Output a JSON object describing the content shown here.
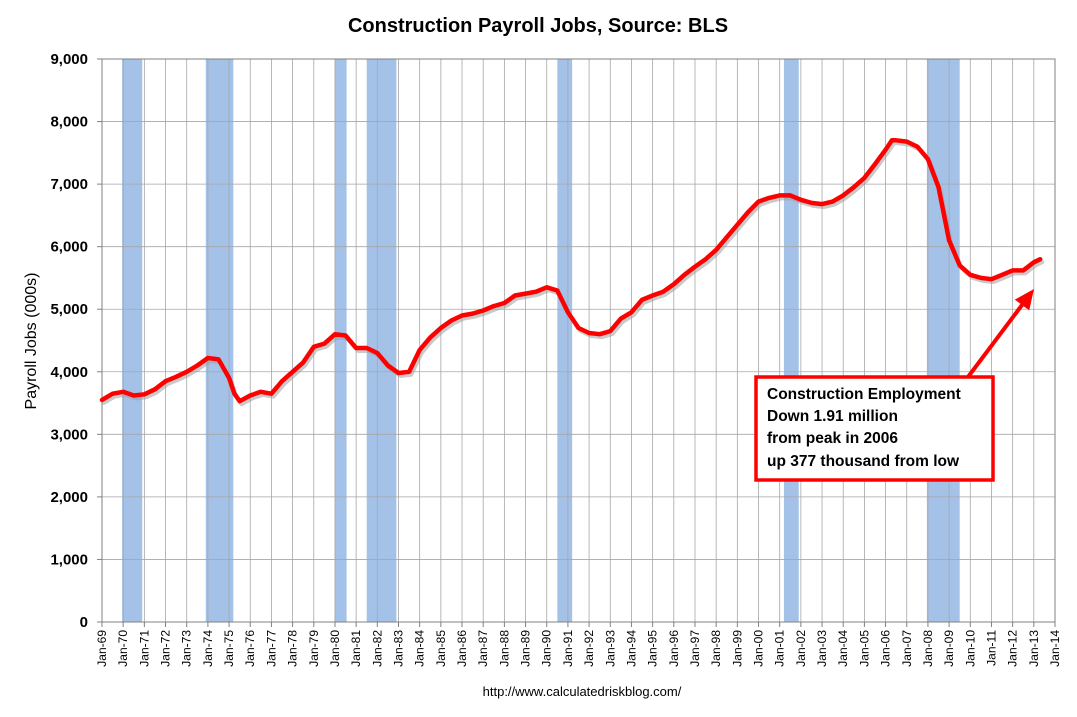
{
  "chart_data": {
    "type": "line",
    "title": "Construction Payroll Jobs, Source: BLS",
    "xlabel": "",
    "ylabel": "Payroll Jobs (000s)",
    "source": "http://www.calculatedriskblog.com/",
    "xlim": [
      1969.0,
      2014.0
    ],
    "ylim": [
      0,
      9000
    ],
    "yticks": [
      0,
      1000,
      2000,
      3000,
      4000,
      5000,
      6000,
      7000,
      8000,
      9000
    ],
    "ytick_labels": [
      "0",
      "1,000",
      "2,000",
      "3,000",
      "4,000",
      "5,000",
      "6,000",
      "7,000",
      "8,000",
      "9,000"
    ],
    "xtick_labels": [
      "Jan-69",
      "Jan-70",
      "Jan-71",
      "Jan-72",
      "Jan-73",
      "Jan-74",
      "Jan-75",
      "Jan-76",
      "Jan-77",
      "Jan-78",
      "Jan-79",
      "Jan-80",
      "Jan-81",
      "Jan-82",
      "Jan-83",
      "Jan-84",
      "Jan-85",
      "Jan-86",
      "Jan-87",
      "Jan-88",
      "Jan-89",
      "Jan-90",
      "Jan-91",
      "Jan-92",
      "Jan-93",
      "Jan-94",
      "Jan-95",
      "Jan-96",
      "Jan-97",
      "Jan-98",
      "Jan-99",
      "Jan-00",
      "Jan-01",
      "Jan-02",
      "Jan-03",
      "Jan-04",
      "Jan-05",
      "Jan-06",
      "Jan-07",
      "Jan-08",
      "Jan-09",
      "Jan-10",
      "Jan-11",
      "Jan-12",
      "Jan-13",
      "Jan-14"
    ],
    "grid": true,
    "recessions": [
      {
        "start": 1969.95,
        "end": 1970.9
      },
      {
        "start": 1973.9,
        "end": 1975.2
      },
      {
        "start": 1980.0,
        "end": 1980.55
      },
      {
        "start": 1981.5,
        "end": 1982.9
      },
      {
        "start": 1990.5,
        "end": 1991.2
      },
      {
        "start": 2001.2,
        "end": 2001.9
      },
      {
        "start": 2007.95,
        "end": 2009.5
      }
    ],
    "series": [
      {
        "name": "Construction Payroll Jobs",
        "color": "#ff0000",
        "x": [
          1969.0,
          1969.5,
          1970.0,
          1970.5,
          1971.0,
          1971.5,
          1972.0,
          1972.5,
          1973.0,
          1973.5,
          1974.0,
          1974.5,
          1975.0,
          1975.25,
          1975.5,
          1976.0,
          1976.5,
          1977.0,
          1977.5,
          1978.0,
          1978.5,
          1979.0,
          1979.5,
          1980.0,
          1980.5,
          1981.0,
          1981.5,
          1982.0,
          1982.5,
          1983.0,
          1983.5,
          1984.0,
          1984.5,
          1985.0,
          1985.5,
          1986.0,
          1986.5,
          1987.0,
          1987.5,
          1988.0,
          1988.5,
          1989.0,
          1989.5,
          1990.0,
          1990.5,
          1991.0,
          1991.5,
          1992.0,
          1992.5,
          1993.0,
          1993.5,
          1994.0,
          1994.5,
          1995.0,
          1995.5,
          1996.0,
          1996.5,
          1997.0,
          1997.5,
          1998.0,
          1998.5,
          1999.0,
          1999.5,
          2000.0,
          2000.5,
          2001.0,
          2001.5,
          2002.0,
          2002.5,
          2003.0,
          2003.5,
          2004.0,
          2004.5,
          2005.0,
          2005.5,
          2006.0,
          2006.3,
          2006.5,
          2007.0,
          2007.5,
          2008.0,
          2008.5,
          2009.0,
          2009.5,
          2010.0,
          2010.5,
          2011.0,
          2011.5,
          2012.0,
          2012.5,
          2013.0,
          2013.3
        ],
        "values": [
          3550,
          3650,
          3680,
          3620,
          3640,
          3720,
          3850,
          3920,
          4000,
          4100,
          4220,
          4200,
          3900,
          3650,
          3530,
          3620,
          3680,
          3650,
          3850,
          4000,
          4150,
          4400,
          4450,
          4600,
          4580,
          4380,
          4380,
          4300,
          4100,
          3980,
          4000,
          4350,
          4550,
          4700,
          4820,
          4900,
          4930,
          4980,
          5050,
          5100,
          5220,
          5250,
          5280,
          5350,
          5300,
          4950,
          4700,
          4620,
          4600,
          4650,
          4850,
          4950,
          5150,
          5220,
          5280,
          5400,
          5550,
          5680,
          5800,
          5950,
          6150,
          6350,
          6550,
          6720,
          6780,
          6820,
          6820,
          6750,
          6700,
          6680,
          6720,
          6820,
          6950,
          7100,
          7320,
          7550,
          7700,
          7700,
          7680,
          7600,
          7400,
          6950,
          6100,
          5700,
          5550,
          5500,
          5480,
          5550,
          5620,
          5620,
          5750,
          5800
        ]
      }
    ],
    "annotation": {
      "lines": [
        "Construction  Employment",
        "Down 1.91 million",
        "from peak in 2006",
        "up 377 thousand from low"
      ],
      "border_color": "#ff0000",
      "arrow_color": "#ff0000",
      "placement": "lower-right"
    }
  }
}
